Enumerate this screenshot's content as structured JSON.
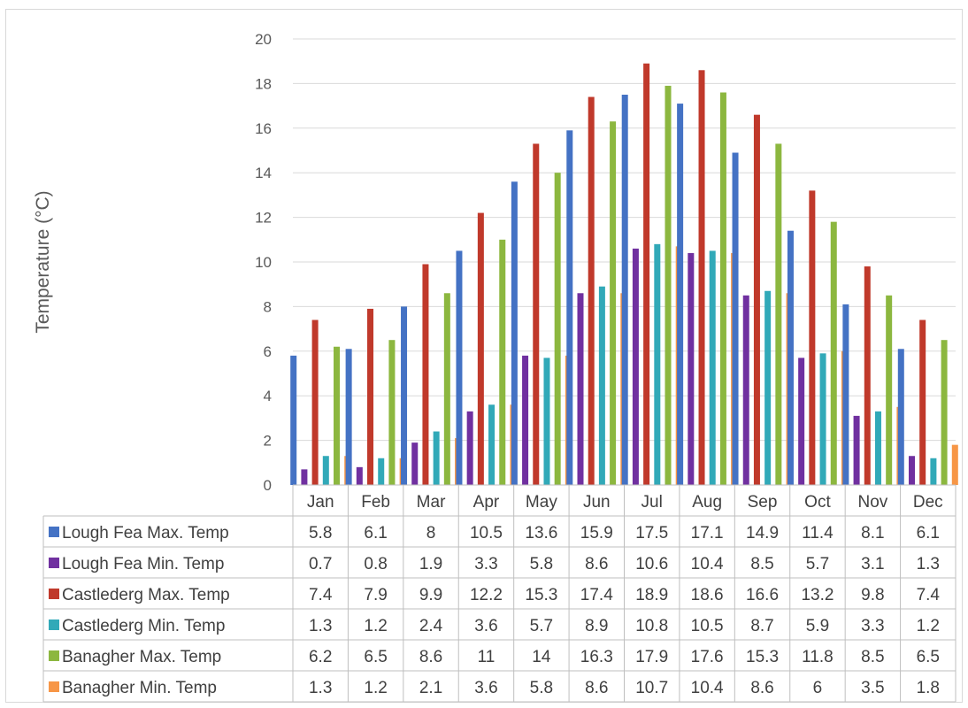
{
  "chart_data": {
    "type": "bar",
    "title": "",
    "xlabel": "",
    "ylabel": "Temperature  (°C)",
    "ylim": [
      0,
      20
    ],
    "yticks": [
      0,
      2,
      4,
      6,
      8,
      10,
      12,
      14,
      16,
      18,
      20
    ],
    "grid": true,
    "legend": "data-table",
    "categories": [
      "Jan",
      "Feb",
      "Mar",
      "Apr",
      "May",
      "Jun",
      "Jul",
      "Aug",
      "Sep",
      "Oct",
      "Nov",
      "Dec"
    ],
    "series": [
      {
        "name": "Lough Fea Max. Temp",
        "color": "#4472c4",
        "values": [
          5.8,
          6.1,
          8,
          10.5,
          13.6,
          15.9,
          17.5,
          17.1,
          14.9,
          11.4,
          8.1,
          6.1
        ]
      },
      {
        "name": "Lough Fea Min. Temp",
        "color": "#7030a0",
        "values": [
          0.7,
          0.8,
          1.9,
          3.3,
          5.8,
          8.6,
          10.6,
          10.4,
          8.5,
          5.7,
          3.1,
          1.3
        ]
      },
      {
        "name": "Castlederg Max. Temp",
        "color": "#c0392b",
        "values": [
          7.4,
          7.9,
          9.9,
          12.2,
          15.3,
          17.4,
          18.9,
          18.6,
          16.6,
          13.2,
          9.8,
          7.4
        ]
      },
      {
        "name": "Castlederg Min. Temp",
        "color": "#31a9b8",
        "values": [
          1.3,
          1.2,
          2.4,
          3.6,
          5.7,
          8.9,
          10.8,
          10.5,
          8.7,
          5.9,
          3.3,
          1.2
        ]
      },
      {
        "name": "Banagher Max. Temp",
        "color": "#8cb73f",
        "values": [
          6.2,
          6.5,
          8.6,
          11,
          14,
          16.3,
          17.9,
          17.6,
          15.3,
          11.8,
          8.5,
          6.5
        ]
      },
      {
        "name": "Banagher Min. Temp",
        "color": "#f79646",
        "values": [
          1.3,
          1.2,
          2.1,
          3.6,
          5.8,
          8.6,
          10.7,
          10.4,
          8.6,
          6,
          3.5,
          1.8
        ]
      }
    ]
  }
}
